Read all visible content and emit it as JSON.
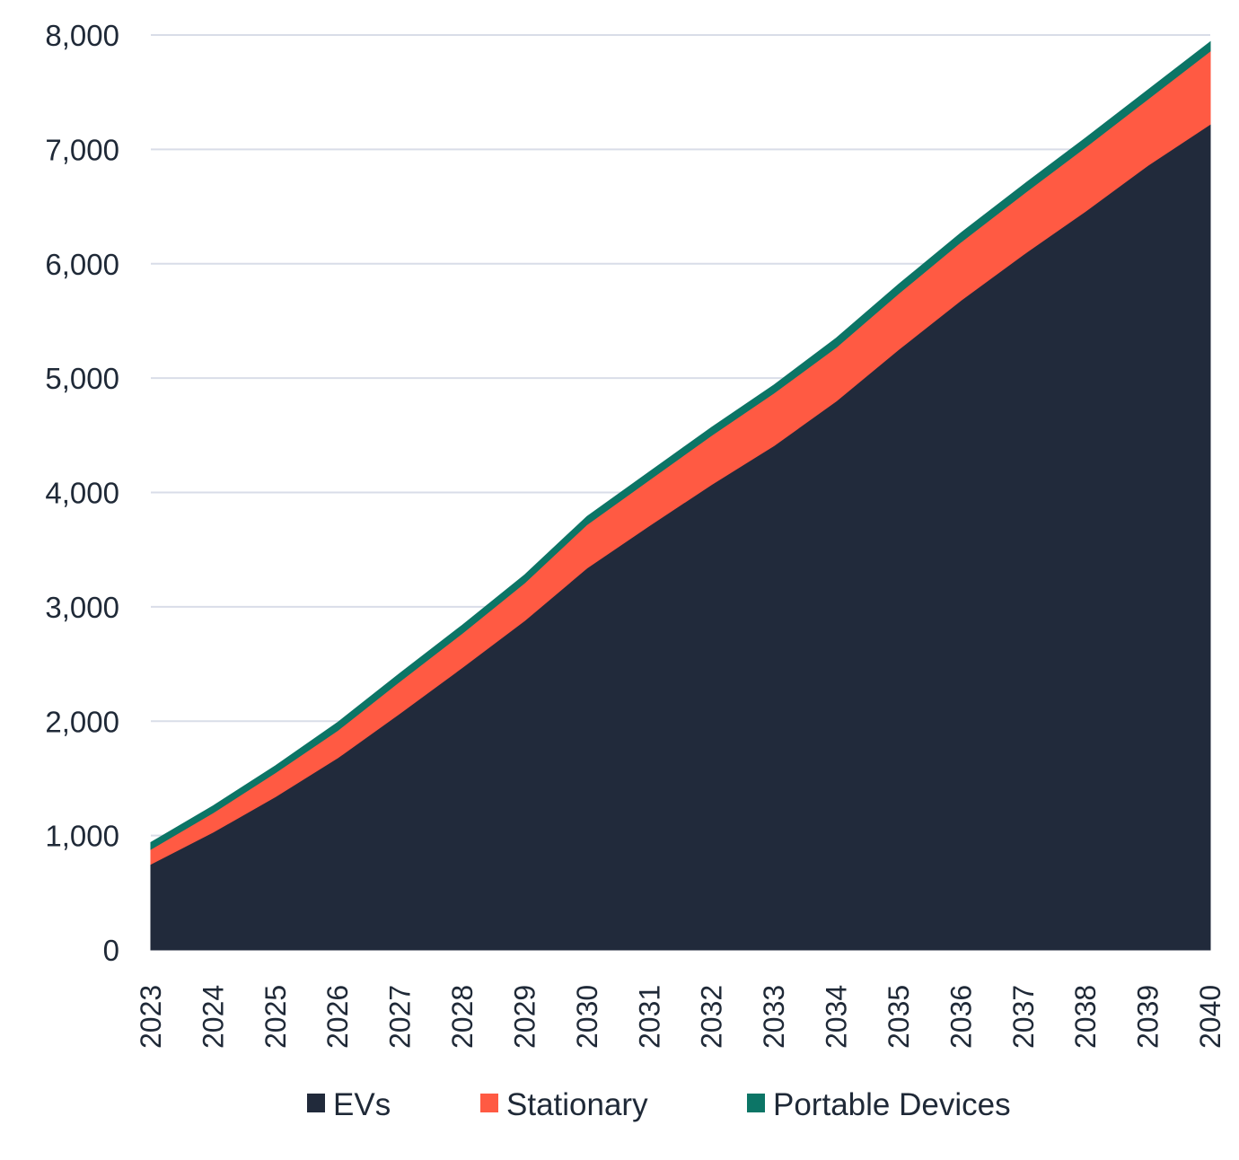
{
  "chart_data": {
    "type": "area",
    "stacked": true,
    "categories": [
      "2023",
      "2024",
      "2025",
      "2026",
      "2027",
      "2028",
      "2029",
      "2030",
      "2031",
      "2032",
      "2033",
      "2034",
      "2035",
      "2036",
      "2037",
      "2038",
      "2039",
      "2040"
    ],
    "series": [
      {
        "name": "EVs",
        "color": "#212a3b",
        "values": [
          750,
          1030,
          1340,
          1680,
          2070,
          2470,
          2880,
          3340,
          3710,
          4070,
          4410,
          4800,
          5250,
          5680,
          6080,
          6460,
          6860,
          7220
        ]
      },
      {
        "name": "Stationary",
        "color": "#ff5a43",
        "values": [
          130,
          170,
          210,
          240,
          280,
          300,
          330,
          380,
          400,
          430,
          460,
          470,
          490,
          510,
          530,
          560,
          580,
          640
        ]
      },
      {
        "name": "Portable Devices",
        "color": "#0c7566",
        "values": [
          60,
          60,
          60,
          70,
          70,
          70,
          70,
          70,
          70,
          70,
          70,
          80,
          80,
          80,
          80,
          80,
          80,
          80
        ]
      }
    ],
    "ylim": [
      0,
      8000
    ],
    "yticks": [
      "0",
      "1,000",
      "2,000",
      "3,000",
      "4,000",
      "5,000",
      "6,000",
      "7,000",
      "8,000"
    ],
    "ytick_values": [
      0,
      1000,
      2000,
      3000,
      4000,
      5000,
      6000,
      7000,
      8000
    ],
    "title": "",
    "xlabel": "",
    "ylabel": "",
    "grid": true,
    "legend": {
      "placement": "bottom",
      "items": [
        "EVs",
        "Stationary",
        "Portable Devices"
      ]
    }
  }
}
